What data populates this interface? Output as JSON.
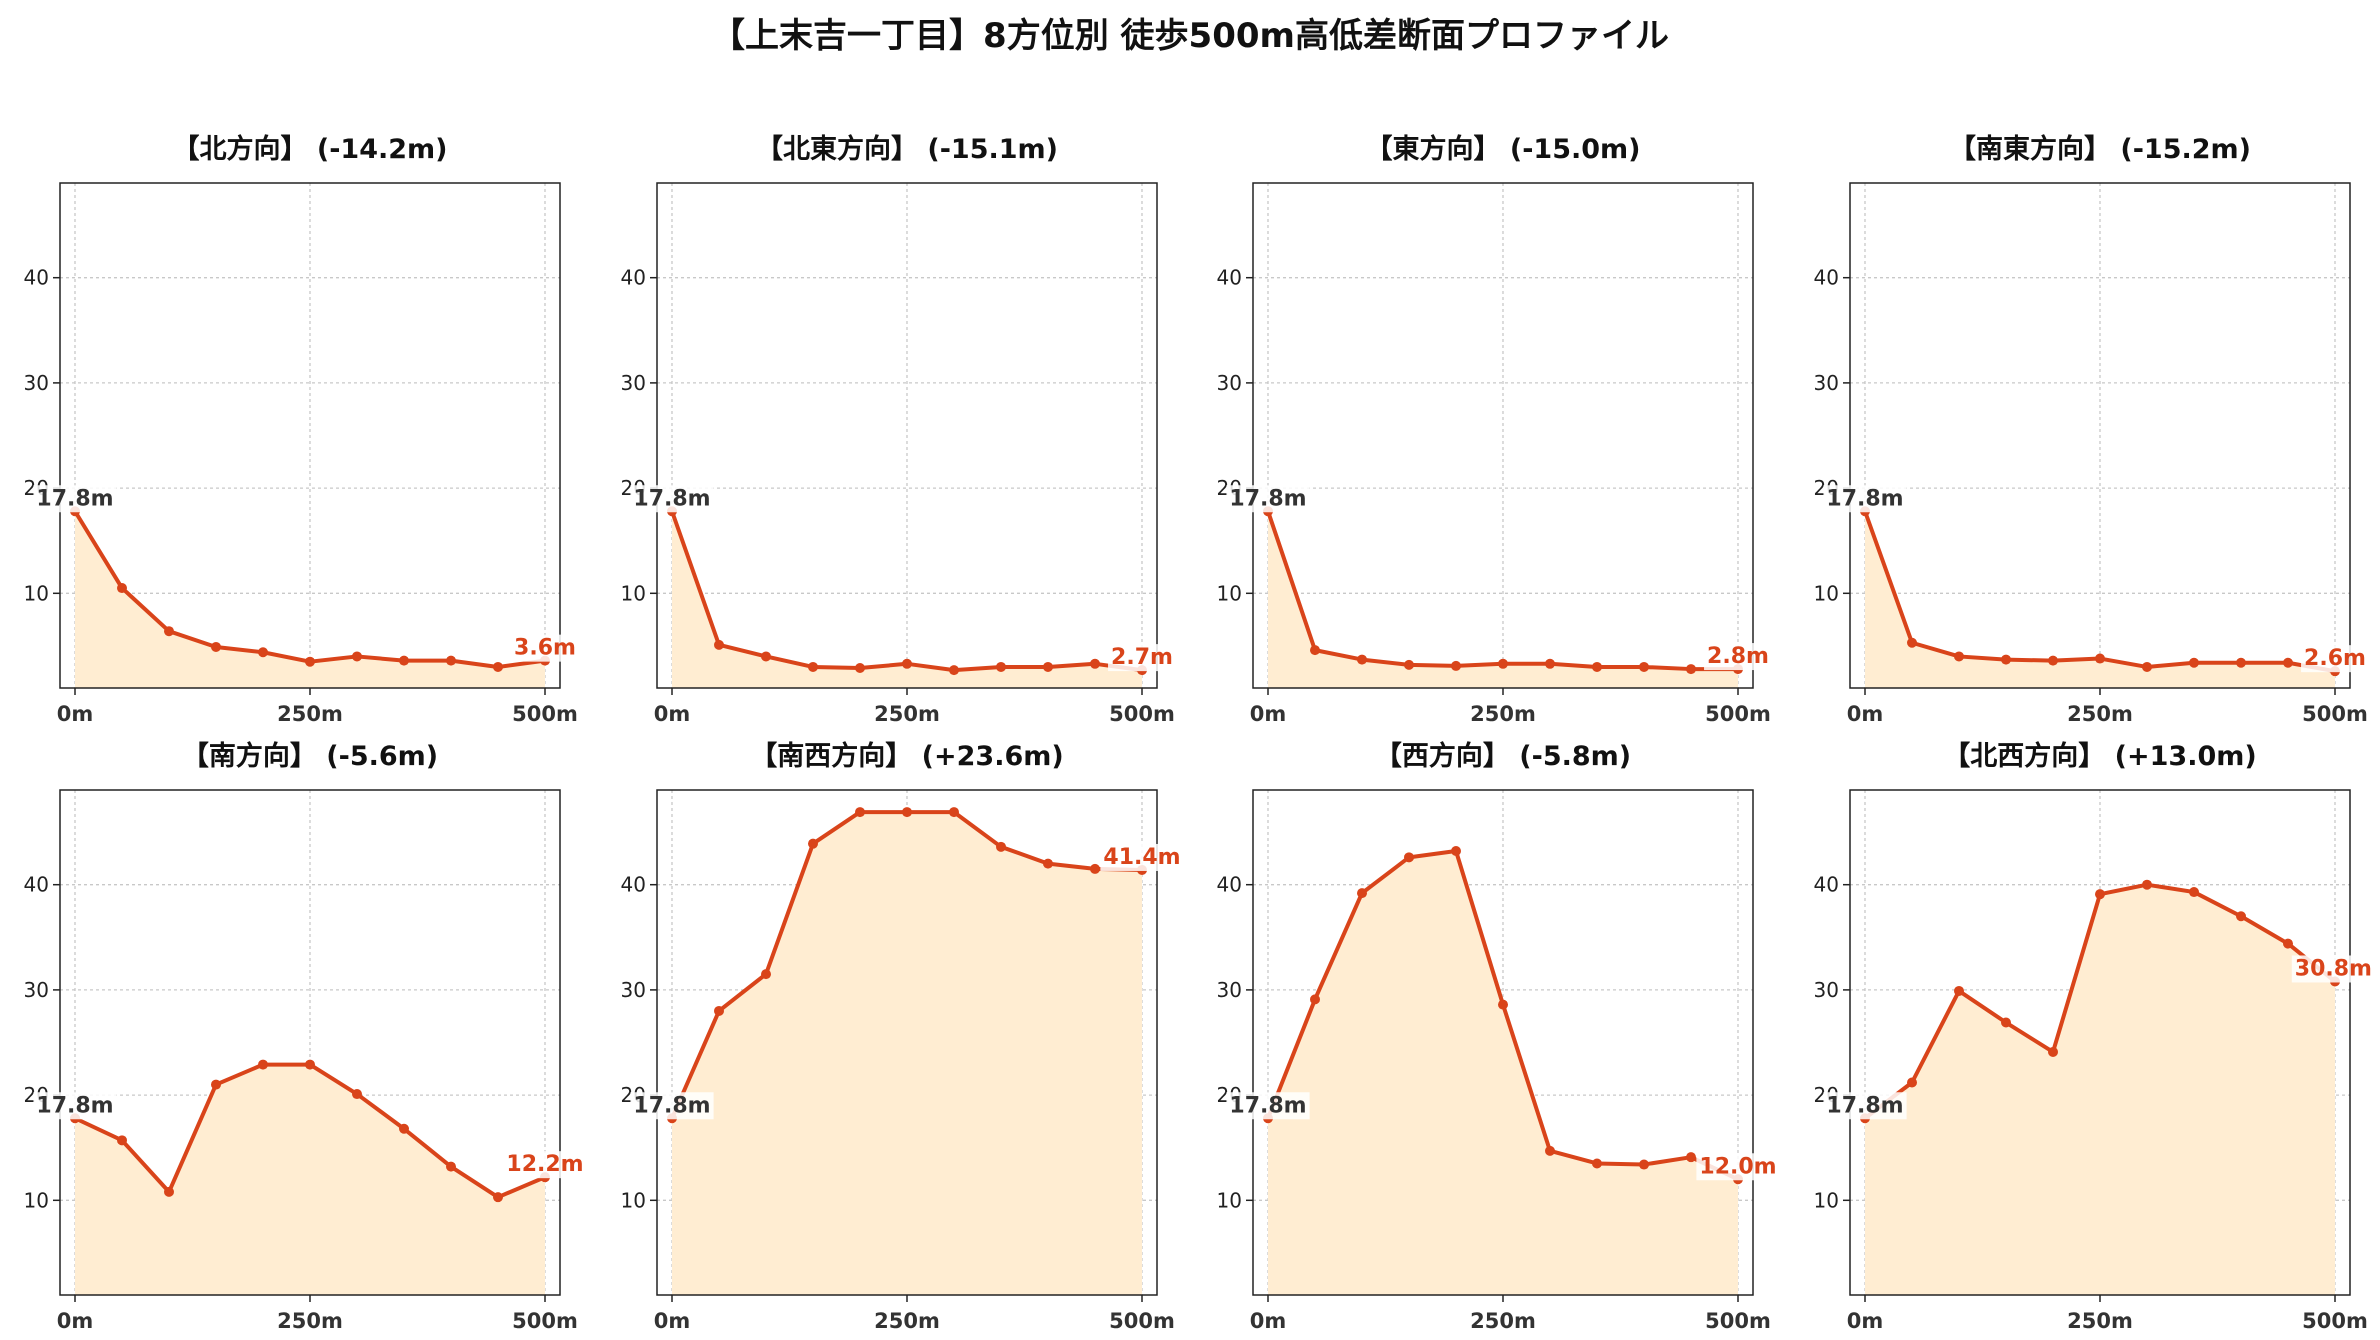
{
  "title": "【上末吉一丁目】8方位別 徒歩500m高低差断面プロファイル",
  "colors": {
    "line": "#d9441a",
    "fill": "#ffedd2",
    "grid": "#c8c8c8",
    "axis": "#222222",
    "end_label": "#d9441a"
  },
  "chart_data": [
    {
      "type": "area",
      "title": "【北方向】 (-14.2m)",
      "x": [
        0,
        50,
        100,
        150,
        200,
        250,
        300,
        350,
        400,
        450,
        500
      ],
      "values": [
        17.8,
        10.5,
        6.4,
        4.9,
        4.4,
        3.5,
        4.0,
        3.6,
        3.6,
        3.0,
        3.6
      ],
      "xticks": [
        "0m",
        "250m",
        "500m"
      ],
      "yticks": [
        10,
        20,
        30,
        40
      ],
      "ylim": [
        1,
        49
      ],
      "start_label": "17.8m",
      "end_label": "3.6m",
      "grid": true
    },
    {
      "type": "area",
      "title": "【北東方向】 (-15.1m)",
      "x": [
        0,
        50,
        100,
        150,
        200,
        250,
        300,
        350,
        400,
        450,
        500
      ],
      "values": [
        17.8,
        5.1,
        4.0,
        3.0,
        2.9,
        3.3,
        2.7,
        3.0,
        3.0,
        3.3,
        2.7
      ],
      "xticks": [
        "0m",
        "250m",
        "500m"
      ],
      "yticks": [
        10,
        20,
        30,
        40
      ],
      "ylim": [
        1,
        49
      ],
      "start_label": "17.8m",
      "end_label": "2.7m",
      "grid": true
    },
    {
      "type": "area",
      "title": "【東方向】 (-15.0m)",
      "x": [
        0,
        50,
        100,
        150,
        200,
        250,
        300,
        350,
        400,
        450,
        500
      ],
      "values": [
        17.8,
        4.6,
        3.7,
        3.2,
        3.1,
        3.3,
        3.3,
        3.0,
        3.0,
        2.8,
        2.8
      ],
      "xticks": [
        "0m",
        "250m",
        "500m"
      ],
      "yticks": [
        10,
        20,
        30,
        40
      ],
      "ylim": [
        1,
        49
      ],
      "start_label": "17.8m",
      "end_label": "2.8m",
      "grid": true
    },
    {
      "type": "area",
      "title": "【南東方向】 (-15.2m)",
      "x": [
        0,
        50,
        100,
        150,
        200,
        250,
        300,
        350,
        400,
        450,
        500
      ],
      "values": [
        17.8,
        5.3,
        4.0,
        3.7,
        3.6,
        3.8,
        3.0,
        3.4,
        3.4,
        3.4,
        2.6
      ],
      "xticks": [
        "0m",
        "250m",
        "500m"
      ],
      "yticks": [
        10,
        20,
        30,
        40
      ],
      "ylim": [
        1,
        49
      ],
      "start_label": "17.8m",
      "end_label": "2.6m",
      "grid": true
    },
    {
      "type": "area",
      "title": "【南方向】 (-5.6m)",
      "x": [
        0,
        50,
        100,
        150,
        200,
        250,
        300,
        350,
        400,
        450,
        500
      ],
      "values": [
        17.8,
        15.7,
        10.8,
        21.0,
        22.9,
        22.9,
        20.1,
        16.8,
        13.2,
        10.3,
        12.2
      ],
      "xticks": [
        "0m",
        "250m",
        "500m"
      ],
      "yticks": [
        10,
        20,
        30,
        40
      ],
      "ylim": [
        1,
        49
      ],
      "start_label": "17.8m",
      "end_label": "12.2m",
      "grid": true
    },
    {
      "type": "area",
      "title": "【南西方向】 (+23.6m)",
      "x": [
        0,
        50,
        100,
        150,
        200,
        250,
        300,
        350,
        400,
        450,
        500
      ],
      "values": [
        17.8,
        28.0,
        31.5,
        43.9,
        46.9,
        46.9,
        46.9,
        43.6,
        42.0,
        41.5,
        41.4
      ],
      "xticks": [
        "0m",
        "250m",
        "500m"
      ],
      "yticks": [
        10,
        20,
        30,
        40
      ],
      "ylim": [
        1,
        49
      ],
      "start_label": "17.8m",
      "end_label": "41.4m",
      "grid": true
    },
    {
      "type": "area",
      "title": "【西方向】 (-5.8m)",
      "x": [
        0,
        50,
        100,
        150,
        200,
        250,
        300,
        350,
        400,
        450,
        500
      ],
      "values": [
        17.8,
        29.1,
        39.2,
        42.6,
        43.2,
        28.6,
        14.7,
        13.5,
        13.4,
        14.1,
        12.0
      ],
      "xticks": [
        "0m",
        "250m",
        "500m"
      ],
      "yticks": [
        10,
        20,
        30,
        40
      ],
      "ylim": [
        1,
        49
      ],
      "start_label": "17.8m",
      "end_label": "12.0m",
      "grid": true
    },
    {
      "type": "area",
      "title": "【北西方向】 (+13.0m)",
      "x": [
        0,
        50,
        100,
        150,
        200,
        250,
        300,
        350,
        400,
        450,
        500
      ],
      "values": [
        17.8,
        21.2,
        29.9,
        26.9,
        24.1,
        39.1,
        40.0,
        39.3,
        37.0,
        34.4,
        30.8
      ],
      "xticks": [
        "0m",
        "250m",
        "500m"
      ],
      "yticks": [
        10,
        20,
        30,
        40
      ],
      "ylim": [
        1,
        49
      ],
      "start_label": "17.8m",
      "end_label": "30.8m",
      "grid": true
    }
  ]
}
